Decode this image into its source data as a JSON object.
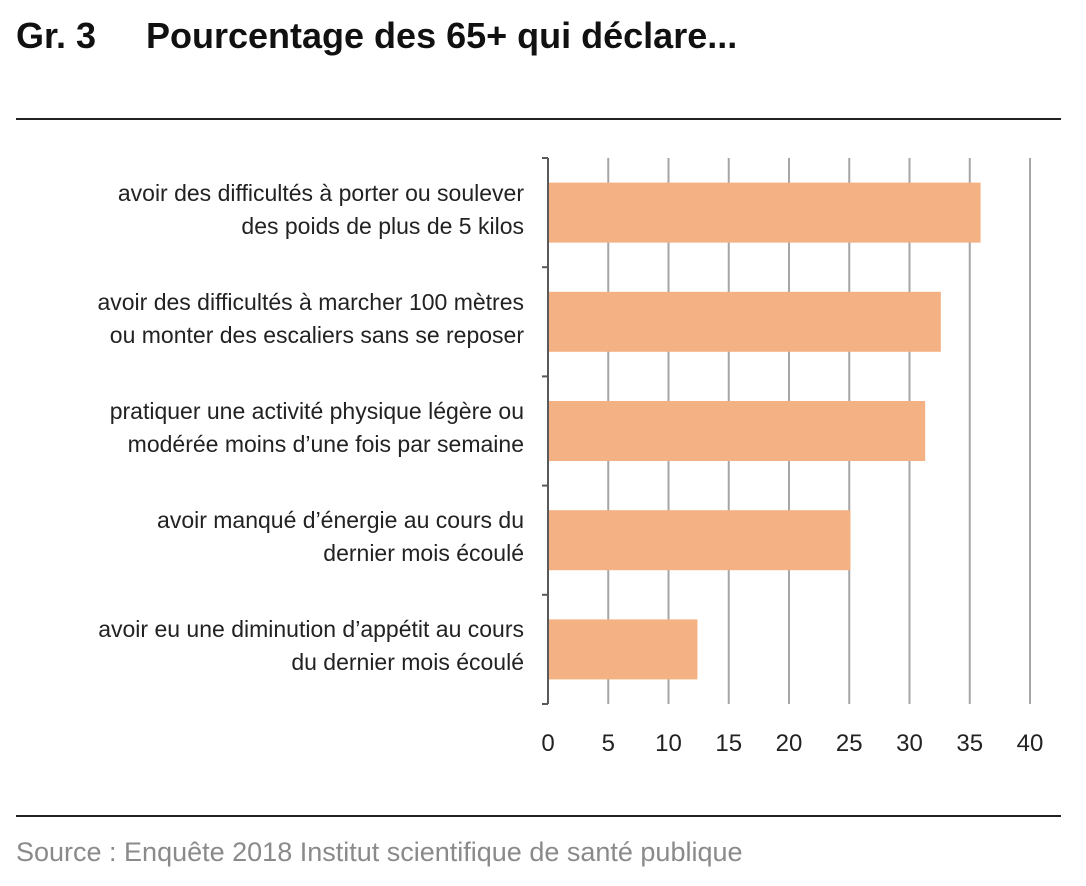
{
  "header": {
    "number": "Gr. 3",
    "title": "Pourcentage des 65+ qui déclare..."
  },
  "source": "Source : Enquête 2018 Institut scientifique de santé publique",
  "colors": {
    "bar": "#f4b183",
    "grid": "#a6a6a6",
    "axis": "#595959",
    "text": "#222222",
    "source_text": "#8a8a8a"
  },
  "chart_data": {
    "type": "bar",
    "orientation": "horizontal",
    "categories": [
      [
        "avoir des difficultés à porter ou soulever",
        "des poids de plus de 5 kilos"
      ],
      [
        "avoir des difficultés à marcher 100 mètres",
        "ou monter des escaliers sans se reposer"
      ],
      [
        "pratiquer une activité physique légère ou",
        "modérée moins d’une fois par semaine"
      ],
      [
        "avoir manqué d’énergie au cours du",
        "dernier mois écoulé"
      ],
      [
        "avoir eu une diminution  d’appétit au cours",
        "du dernier mois écoulé"
      ]
    ],
    "values": [
      35.9,
      32.6,
      31.3,
      25.1,
      12.4
    ],
    "xlim": [
      0,
      40
    ],
    "xticks": [
      0,
      5,
      10,
      15,
      20,
      25,
      30,
      35,
      40
    ],
    "xtick_labels": [
      "0",
      "5",
      "10",
      "15",
      "20",
      "25",
      "30",
      "35",
      "40"
    ],
    "grid": "vertical",
    "legend": "none"
  }
}
